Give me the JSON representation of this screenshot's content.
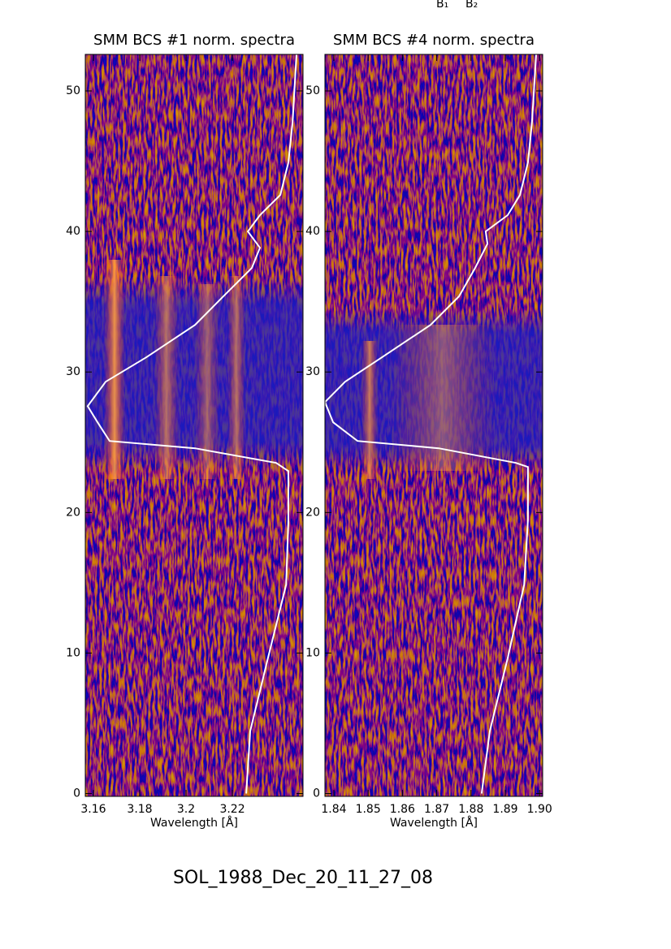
{
  "header_labels": [
    "B₁",
    "B₂"
  ],
  "footer": "SOL_1988_Dec_20_11_27_08",
  "chart_data": [
    {
      "type": "spectrogram",
      "title": "SMM BCS #1 norm. spectra",
      "x_label": "Wavelength [Å]",
      "xlim": [
        3.1565,
        3.2505
      ],
      "xticks": [
        3.16,
        3.18,
        3.2,
        3.22
      ],
      "ylim": [
        -0.2,
        52.6
      ],
      "yticks": [
        0,
        10,
        20,
        30,
        40,
        50
      ],
      "series": [
        {
          "color": "#ffffff",
          "x": [
            3.226,
            3.2277,
            3.2354,
            3.2432,
            3.2442,
            3.2442,
            3.2389,
            3.2039,
            3.167,
            3.1618,
            3.1575,
            3.1653,
            3.1828,
            3.2039,
            3.2161,
            3.2284,
            3.2319,
            3.2267,
            3.2319,
            3.2407,
            3.2442,
            3.246,
            3.2477
          ],
          "values": [
            0,
            4.45,
            9.65,
            14.86,
            19.48,
            22.95,
            23.53,
            24.57,
            25.09,
            26.42,
            27.57,
            29.31,
            31.04,
            33.35,
            35.38,
            37.4,
            38.84,
            40.0,
            41.16,
            42.6,
            44.91,
            47.8,
            52.6
          ]
        }
      ]
    },
    {
      "type": "spectrogram",
      "title": "SMM BCS #4 norm. spectra",
      "x_label": "Wavelength [Å]",
      "xlim": [
        1.8374,
        1.9009
      ],
      "xticks": [
        1.84,
        1.85,
        1.86,
        1.87,
        1.88,
        1.89,
        {
          "value": 1.9,
          "label": "1.90"
        }
      ],
      "ylim": [
        -0.2,
        52.6
      ],
      "yticks": [
        0,
        10,
        20,
        30,
        40,
        50
      ],
      "series": [
        {
          "color": "#ffffff",
          "x": [
            1.8831,
            1.8855,
            1.8907,
            1.8955,
            1.8966,
            1.8966,
            1.8931,
            1.8706,
            1.8469,
            1.8398,
            1.8374,
            1.8433,
            1.854,
            1.8682,
            1.8765,
            1.8812,
            1.8848,
            1.8843,
            1.8907,
            1.8943,
            1.8966,
            1.8978,
            1.899
          ],
          "values": [
            0,
            4.45,
            9.65,
            14.86,
            19.48,
            23.24,
            23.53,
            24.57,
            25.09,
            26.42,
            27.86,
            29.31,
            31.04,
            33.35,
            35.38,
            37.4,
            39.13,
            40.0,
            41.16,
            42.6,
            44.91,
            47.8,
            52.6
          ]
        }
      ]
    }
  ]
}
